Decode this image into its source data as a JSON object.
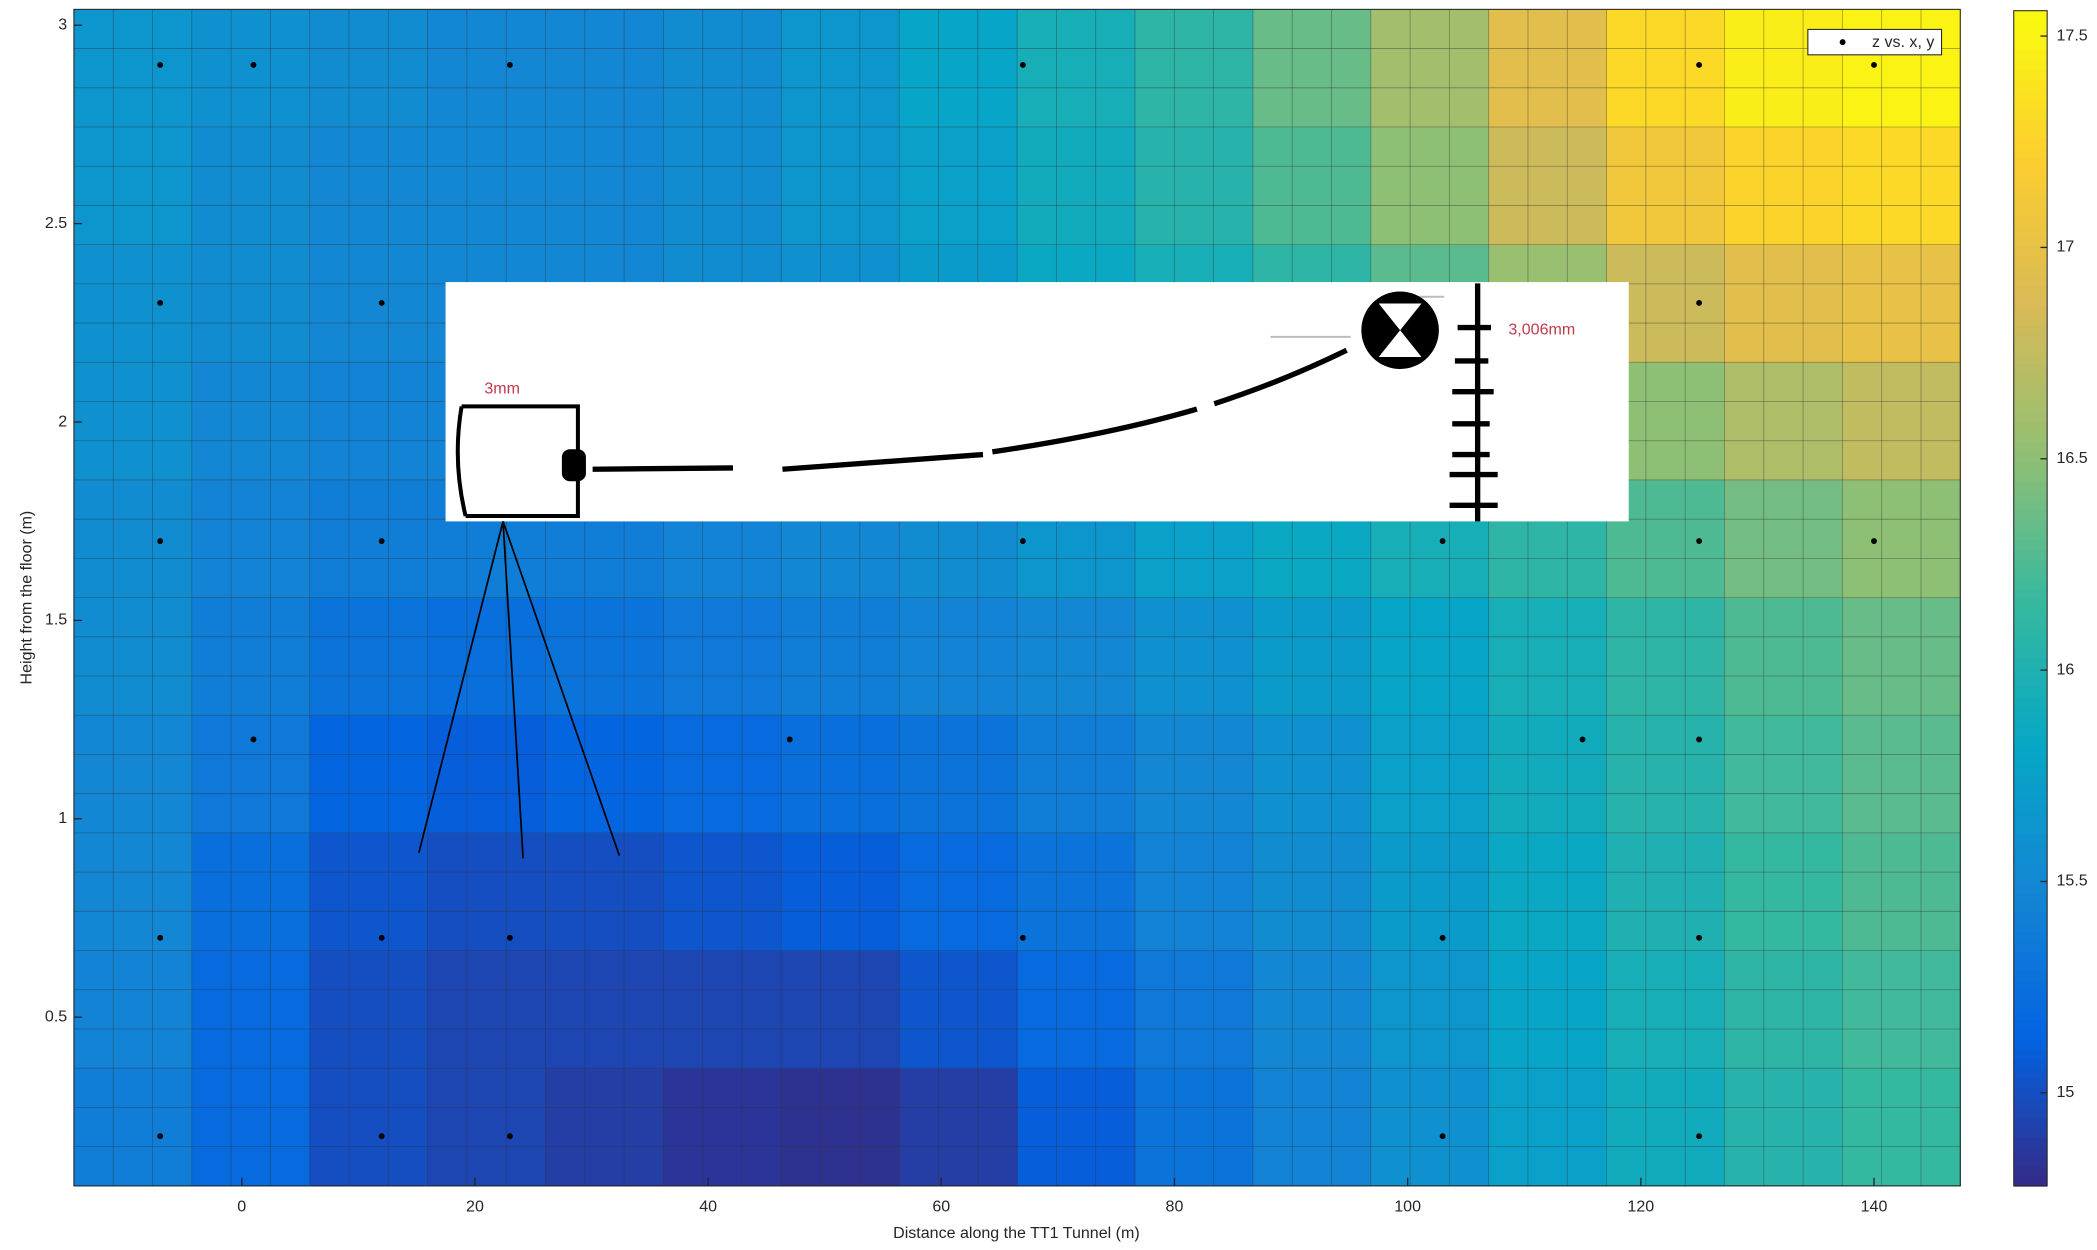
{
  "chart_data": {
    "type": "heatmap",
    "xlabel": "Distance along the TT1 Tunnel (m)",
    "ylabel": "Height from the floor (m)",
    "x": [
      -9.3,
      0.8,
      10.9,
      21.0,
      31.1,
      41.2,
      51.3,
      61.5,
      71.6,
      81.7,
      91.8,
      101.9,
      112.0,
      122.1,
      132.2,
      142.3
    ],
    "y": [
      0.223,
      0.52,
      0.816,
      1.113,
      1.41,
      1.706,
      2.003,
      2.299,
      2.596,
      2.892
    ],
    "z": [
      [
        15.4,
        15.2,
        15.0,
        14.95,
        14.9,
        14.85,
        14.82,
        14.9,
        15.1,
        15.3,
        15.45,
        15.6,
        15.75,
        15.9,
        16.05,
        16.15
      ],
      [
        15.45,
        15.2,
        15.0,
        14.95,
        14.95,
        14.95,
        14.95,
        15.05,
        15.2,
        15.35,
        15.5,
        15.65,
        15.8,
        15.95,
        16.1,
        16.2
      ],
      [
        15.5,
        15.25,
        15.05,
        15.0,
        15.0,
        15.05,
        15.1,
        15.2,
        15.3,
        15.45,
        15.55,
        15.7,
        15.85,
        16.0,
        16.15,
        16.25
      ],
      [
        15.5,
        15.35,
        15.15,
        15.1,
        15.15,
        15.2,
        15.25,
        15.3,
        15.4,
        15.5,
        15.6,
        15.75,
        15.9,
        16.05,
        16.2,
        16.3
      ],
      [
        15.55,
        15.4,
        15.3,
        15.25,
        15.3,
        15.35,
        15.4,
        15.45,
        15.5,
        15.6,
        15.7,
        15.8,
        15.95,
        16.1,
        16.25,
        16.35
      ],
      [
        15.55,
        15.45,
        15.4,
        15.4,
        15.4,
        15.45,
        15.5,
        15.55,
        15.65,
        15.75,
        15.85,
        15.95,
        16.1,
        16.25,
        16.4,
        16.5
      ],
      [
        15.6,
        15.5,
        15.45,
        15.45,
        15.45,
        15.5,
        15.55,
        15.65,
        15.75,
        15.85,
        15.95,
        16.1,
        16.3,
        16.5,
        16.65,
        16.75
      ],
      [
        15.6,
        15.55,
        15.5,
        15.5,
        15.5,
        15.55,
        15.6,
        15.7,
        15.85,
        15.95,
        16.1,
        16.3,
        16.55,
        16.8,
        16.95,
        17.0
      ],
      [
        15.65,
        15.55,
        15.5,
        15.5,
        15.5,
        15.55,
        15.65,
        15.75,
        15.9,
        16.05,
        16.25,
        16.5,
        16.8,
        17.1,
        17.25,
        17.3
      ],
      [
        15.65,
        15.6,
        15.55,
        15.5,
        15.5,
        15.55,
        15.65,
        15.8,
        15.95,
        16.1,
        16.35,
        16.6,
        16.95,
        17.3,
        17.45,
        17.5
      ]
    ],
    "xlim": [
      -14.4,
      147.4
    ],
    "ylim": [
      0.075,
      3.04
    ],
    "xticks": [
      0,
      20,
      40,
      60,
      80,
      100,
      120,
      140
    ],
    "yticks": [
      0.5,
      1,
      1.5,
      2,
      2.5,
      3
    ],
    "clim": [
      14.78,
      17.56
    ],
    "cticks": [
      15,
      15.5,
      16,
      16.5,
      17,
      17.5
    ],
    "colormap": [
      "#352a87",
      "#0363e1",
      "#1485d4",
      "#06a7c6",
      "#38b99e",
      "#92bf73",
      "#d9ba56",
      "#fcce2e",
      "#f9fb0e"
    ],
    "grid": true,
    "legend": "upper right",
    "scatter": {
      "name": "z vs. x, y",
      "color": "#000000",
      "x": [
        -7,
        1,
        23,
        67,
        125,
        140,
        -7,
        12,
        125,
        -7,
        12,
        67,
        103,
        125,
        140,
        1,
        47,
        115,
        125,
        -7,
        12,
        23,
        67,
        103,
        125,
        -7,
        12,
        23,
        103,
        125
      ],
      "y": [
        2.9,
        2.9,
        2.9,
        2.9,
        2.9,
        2.9,
        2.3,
        2.3,
        2.3,
        1.7,
        1.7,
        1.7,
        1.7,
        1.7,
        1.7,
        1.2,
        1.2,
        1.2,
        1.2,
        0.7,
        0.7,
        0.7,
        0.7,
        0.7,
        0.7,
        0.2,
        0.2,
        0.2,
        0.2,
        0.2
      ]
    },
    "annotations": [
      "3mm",
      "3,006mm"
    ]
  }
}
